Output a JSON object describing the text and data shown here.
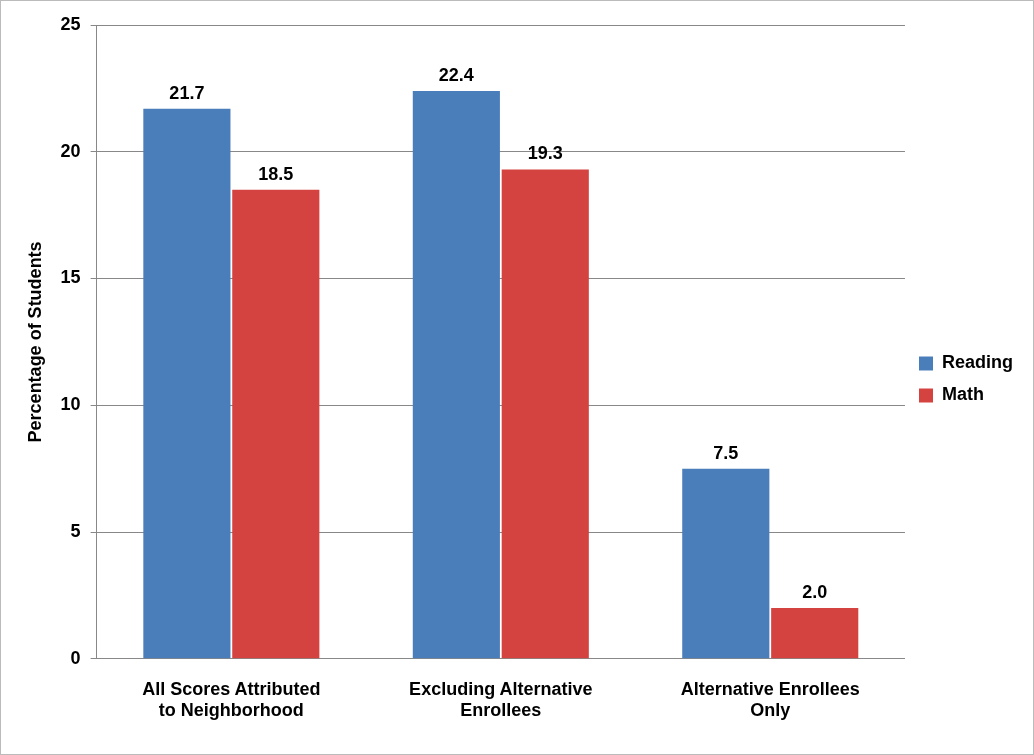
{
  "chart_data": {
    "type": "bar",
    "ylabel": "Percentage of Students",
    "categories": [
      "All Scores Attributed to Neighborhood",
      "Excluding Alternative Enrollees",
      "Alternative Enrollees Only"
    ],
    "series": [
      {
        "name": "Reading",
        "color": "#4a7ebb",
        "values": [
          21.7,
          22.4,
          7.5
        ],
        "value_labels": [
          "21.7",
          "22.4",
          "7.5"
        ]
      },
      {
        "name": "Math",
        "color": "#d4433f",
        "values": [
          18.5,
          19.3,
          2.0
        ],
        "value_labels": [
          "18.5",
          "19.3",
          "2.0"
        ]
      }
    ],
    "ylim": [
      0,
      25
    ],
    "yticks": [
      0,
      5,
      10,
      15,
      20,
      25
    ],
    "grid": "y",
    "legend": "right"
  }
}
